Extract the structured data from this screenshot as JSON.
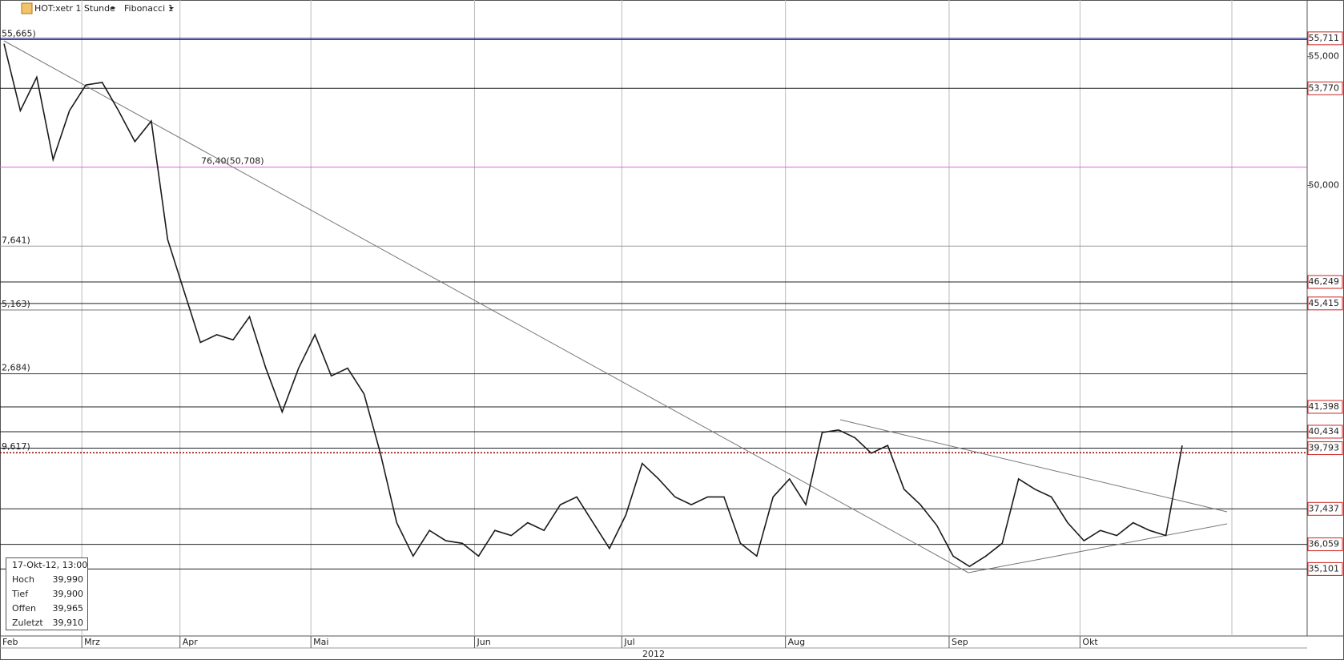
{
  "toolbar": {
    "symbol": "HOT:xetr 1 Stunde",
    "indicator": "Fibonacci 1"
  },
  "chart_data": {
    "type": "line",
    "color": "#1a1a1a",
    "x_group_label": "2012",
    "categories": [
      "Feb",
      null,
      null,
      null,
      null,
      "Mrz",
      null,
      null,
      null,
      null,
      null,
      "Apr",
      null,
      null,
      null,
      null,
      null,
      null,
      null,
      "Mai",
      null,
      null,
      null,
      null,
      null,
      null,
      null,
      null,
      null,
      "Jun",
      null,
      null,
      null,
      null,
      null,
      null,
      null,
      null,
      "Jul",
      null,
      null,
      null,
      null,
      null,
      null,
      null,
      null,
      null,
      "Aug",
      null,
      null,
      null,
      null,
      null,
      null,
      null,
      null,
      null,
      "Sep",
      null,
      null,
      null,
      null,
      null,
      null,
      null,
      "Okt",
      null,
      null,
      null,
      null,
      null,
      null
    ],
    "values": [
      55.5,
      52.9,
      54.2,
      51.0,
      52.9,
      53.9,
      54.0,
      52.9,
      51.7,
      52.5,
      47.9,
      45.9,
      43.9,
      44.2,
      44.0,
      44.9,
      42.9,
      41.2,
      42.9,
      44.2,
      42.6,
      42.9,
      41.9,
      39.6,
      36.9,
      35.6,
      36.6,
      36.2,
      36.1,
      35.6,
      36.6,
      36.4,
      36.9,
      36.6,
      37.6,
      37.9,
      36.9,
      35.9,
      37.2,
      39.2,
      38.6,
      37.9,
      37.6,
      37.9,
      37.9,
      36.1,
      35.6,
      37.9,
      38.6,
      37.6,
      40.4,
      40.5,
      40.2,
      39.6,
      39.9,
      38.2,
      37.6,
      36.8,
      35.6,
      35.2,
      35.6,
      36.1,
      38.6,
      38.2,
      37.9,
      36.9,
      36.2,
      36.6,
      36.4,
      36.9,
      36.6,
      36.4,
      39.9
    ],
    "ylim": [
      32.5,
      57.2
    ],
    "yticks": [
      {
        "value": 55,
        "label": "55,000"
      },
      {
        "value": 50,
        "label": "50,000"
      }
    ],
    "grid": true,
    "levels": [
      {
        "value": 55.711,
        "label": "55,711",
        "color": "#1a1a8c"
      },
      {
        "value": 53.77,
        "label": "53,770",
        "color": "#222222"
      },
      {
        "value": 46.249,
        "label": "46,249",
        "color": "#222222"
      },
      {
        "value": 45.415,
        "label": "45,415",
        "color": "#222222"
      },
      {
        "value": 41.398,
        "label": "41,398",
        "color": "#222222"
      },
      {
        "value": 40.434,
        "label": "40,434",
        "color": "#222222"
      },
      {
        "value": 39.793,
        "label": "39,793",
        "color": "#222222"
      },
      {
        "value": 37.437,
        "label": "37,437",
        "color": "#222222"
      },
      {
        "value": 36.059,
        "label": "36,059",
        "color": "#222222"
      },
      {
        "value": 35.101,
        "label": "35,101",
        "color": "#222222"
      }
    ],
    "fib_levels": [
      {
        "value": 55.665,
        "label": "55,665)",
        "color": "#1a1a9c",
        "line": "#1a1a9c"
      },
      {
        "value": 50.708,
        "label": "76,40(50,708)",
        "color": "#d020d0",
        "line": "#e060e0"
      },
      {
        "value": 47.641,
        "label": "7,641)",
        "color": "#603070",
        "line": "#999999"
      },
      {
        "value": 45.163,
        "label": "5,163)",
        "color": "#2e7d32",
        "line": "#777777"
      },
      {
        "value": 42.684,
        "label": "2,684)",
        "color": "#222222",
        "line": "#444444"
      },
      {
        "value": 39.617,
        "label": "9,617)",
        "color": "#d08080",
        "line": "#8b0000"
      }
    ]
  },
  "info_box": {
    "datetime": "17-Okt-12, 13:00",
    "rows": [
      [
        "Hoch",
        "39,990"
      ],
      [
        "Tief",
        "39,900"
      ],
      [
        "Offen",
        "39,965"
      ],
      [
        "Zuletzt",
        "39,910"
      ]
    ]
  }
}
